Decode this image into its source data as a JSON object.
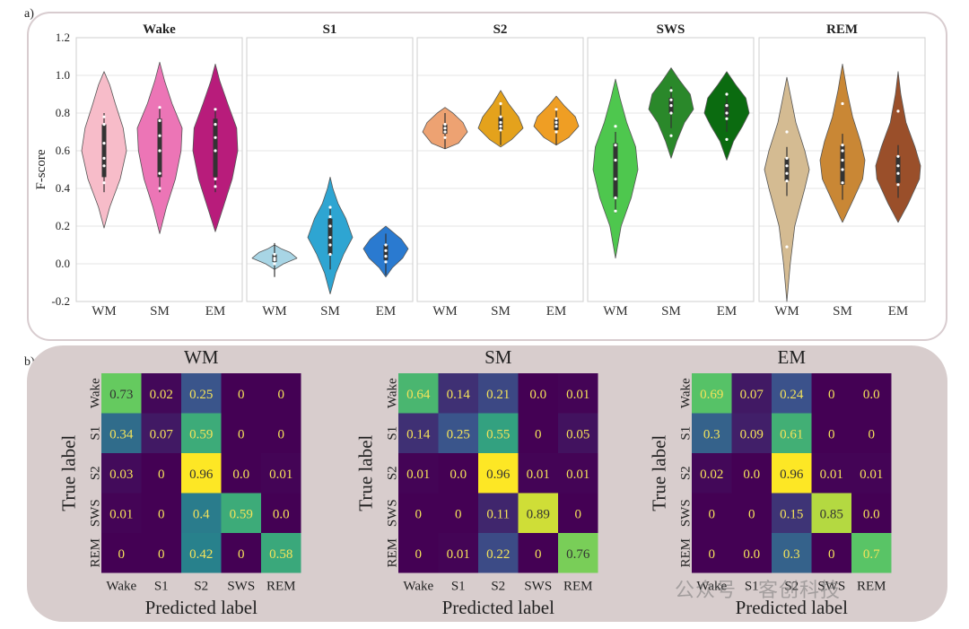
{
  "panel_labels": {
    "a": "a)",
    "b": "b)"
  },
  "watermark": "公众号 · 客创科技",
  "chart_data": [
    {
      "type": "violin",
      "ylabel": "F-score",
      "ylim": [
        -0.2,
        1.2
      ],
      "yticks": [
        -0.2,
        0.0,
        0.2,
        0.4,
        0.6,
        0.8,
        1.0,
        1.2
      ],
      "ytick_labels": [
        "-0.2",
        "0.0",
        "0.2",
        "0.4",
        "0.6",
        "0.8",
        "1.0",
        "1.2"
      ],
      "grid": true,
      "categories": [
        "WM",
        "SM",
        "EM"
      ],
      "panels": [
        {
          "title": "Wake",
          "colors": [
            "#f7bcc9",
            "#ec75b6",
            "#b81c7b"
          ],
          "violins": [
            {
              "min": 0.19,
              "max": 1.02,
              "median": 0.59,
              "q1": 0.46,
              "q3": 0.74,
              "shape": [
                [
                  0.19,
                  0
                ],
                [
                  0.3,
                  0.25
                ],
                [
                  0.45,
                  0.72
                ],
                [
                  0.6,
                  1
                ],
                [
                  0.72,
                  0.85
                ],
                [
                  0.85,
                  0.5
                ],
                [
                  0.95,
                  0.25
                ],
                [
                  1.02,
                  0
                ]
              ],
              "points": [
                0.43,
                0.52,
                0.56,
                0.64,
                0.74,
                0.78
              ]
            },
            {
              "min": 0.16,
              "max": 1.07,
              "median": 0.63,
              "q1": 0.46,
              "q3": 0.77,
              "shape": [
                [
                  0.16,
                  0
                ],
                [
                  0.3,
                  0.3
                ],
                [
                  0.45,
                  0.7
                ],
                [
                  0.6,
                  0.95
                ],
                [
                  0.72,
                  1
                ],
                [
                  0.85,
                  0.55
                ],
                [
                  0.97,
                  0.22
                ],
                [
                  1.07,
                  0
                ]
              ],
              "points": [
                0.4,
                0.48,
                0.6,
                0.68,
                0.76,
                0.83
              ]
            },
            {
              "min": 0.17,
              "max": 1.06,
              "median": 0.62,
              "q1": 0.46,
              "q3": 0.77,
              "shape": [
                [
                  0.17,
                  0
                ],
                [
                  0.3,
                  0.35
                ],
                [
                  0.45,
                  0.75
                ],
                [
                  0.6,
                  1
                ],
                [
                  0.72,
                  0.95
                ],
                [
                  0.85,
                  0.55
                ],
                [
                  0.97,
                  0.2
                ],
                [
                  1.06,
                  0
                ]
              ],
              "points": [
                0.41,
                0.45,
                0.6,
                0.67,
                0.74,
                0.82
              ]
            }
          ]
        },
        {
          "title": "S1",
          "colors": [
            "#a8d5e5",
            "#2ea5d2",
            "#2a7ad0"
          ],
          "violins": [
            {
              "min": -0.03,
              "max": 0.1,
              "median": 0.03,
              "q1": 0.01,
              "q3": 0.05,
              "shape": [
                [
                  -0.03,
                  0
                ],
                [
                  0.0,
                  0.4
                ],
                [
                  0.03,
                  1
                ],
                [
                  0.06,
                  0.7
                ],
                [
                  0.08,
                  0.3
                ],
                [
                  0.1,
                  0
                ]
              ],
              "points": [
                0.0,
                0.02,
                0.03,
                0.05
              ]
            },
            {
              "min": -0.16,
              "max": 0.46,
              "median": 0.14,
              "q1": 0.05,
              "q3": 0.24,
              "shape": [
                [
                  -0.16,
                  0
                ],
                [
                  -0.05,
                  0.25
                ],
                [
                  0.05,
                  0.6
                ],
                [
                  0.14,
                  1
                ],
                [
                  0.24,
                  0.7
                ],
                [
                  0.32,
                  0.35
                ],
                [
                  0.4,
                  0.12
                ],
                [
                  0.46,
                  0
                ]
              ],
              "points": [
                0.05,
                0.1,
                0.14,
                0.2,
                0.25,
                0.3
              ]
            },
            {
              "min": -0.07,
              "max": 0.2,
              "median": 0.06,
              "q1": 0.02,
              "q3": 0.1,
              "shape": [
                [
                  -0.07,
                  0
                ],
                [
                  -0.02,
                  0.3
                ],
                [
                  0.03,
                  0.75
                ],
                [
                  0.08,
                  1
                ],
                [
                  0.13,
                  0.7
                ],
                [
                  0.17,
                  0.3
                ],
                [
                  0.2,
                  0
                ]
              ],
              "points": [
                0.01,
                0.04,
                0.07,
                0.1
              ]
            }
          ]
        },
        {
          "title": "S2",
          "colors": [
            "#eda272",
            "#e4a21c",
            "#ef9e24"
          ],
          "violins": [
            {
              "min": 0.61,
              "max": 0.83,
              "median": 0.71,
              "q1": 0.69,
              "q3": 0.74,
              "shape": [
                [
                  0.61,
                  0
                ],
                [
                  0.64,
                  0.6
                ],
                [
                  0.7,
                  1
                ],
                [
                  0.75,
                  0.8
                ],
                [
                  0.8,
                  0.35
                ],
                [
                  0.83,
                  0
                ]
              ],
              "points": [
                0.67,
                0.7,
                0.72,
                0.74
              ]
            },
            {
              "min": 0.62,
              "max": 0.92,
              "median": 0.74,
              "q1": 0.71,
              "q3": 0.78,
              "shape": [
                [
                  0.62,
                  0
                ],
                [
                  0.66,
                  0.5
                ],
                [
                  0.72,
                  1
                ],
                [
                  0.78,
                  0.8
                ],
                [
                  0.85,
                  0.35
                ],
                [
                  0.92,
                  0
                ]
              ],
              "points": [
                0.71,
                0.73,
                0.75,
                0.78,
                0.85
              ]
            },
            {
              "min": 0.63,
              "max": 0.89,
              "median": 0.74,
              "q1": 0.71,
              "q3": 0.77,
              "shape": [
                [
                  0.63,
                  0
                ],
                [
                  0.67,
                  0.55
                ],
                [
                  0.73,
                  1
                ],
                [
                  0.78,
                  0.85
                ],
                [
                  0.84,
                  0.35
                ],
                [
                  0.89,
                  0
                ]
              ],
              "points": [
                0.7,
                0.73,
                0.75,
                0.77,
                0.82
              ]
            }
          ]
        },
        {
          "title": "SWS",
          "colors": [
            "#4ec74e",
            "#2a882a",
            "#0b6b10"
          ],
          "violins": [
            {
              "min": 0.03,
              "max": 0.98,
              "median": 0.46,
              "q1": 0.35,
              "q3": 0.64,
              "shape": [
                [
                  0.03,
                  0
                ],
                [
                  0.2,
                  0.25
                ],
                [
                  0.35,
                  0.7
                ],
                [
                  0.5,
                  1
                ],
                [
                  0.62,
                  0.9
                ],
                [
                  0.75,
                  0.5
                ],
                [
                  0.88,
                  0.2
                ],
                [
                  0.98,
                  0
                ]
              ],
              "points": [
                0.28,
                0.35,
                0.45,
                0.55,
                0.63,
                0.73
              ]
            },
            {
              "min": 0.56,
              "max": 1.04,
              "median": 0.84,
              "q1": 0.8,
              "q3": 0.88,
              "shape": [
                [
                  0.56,
                  0
                ],
                [
                  0.65,
                  0.25
                ],
                [
                  0.75,
                  0.6
                ],
                [
                  0.82,
                  1
                ],
                [
                  0.9,
                  0.85
                ],
                [
                  0.97,
                  0.4
                ],
                [
                  1.04,
                  0
                ]
              ],
              "points": [
                0.68,
                0.8,
                0.84,
                0.87,
                0.92
              ]
            },
            {
              "min": 0.55,
              "max": 1.02,
              "median": 0.81,
              "q1": 0.78,
              "q3": 0.85,
              "shape": [
                [
                  0.55,
                  0
                ],
                [
                  0.65,
                  0.3
                ],
                [
                  0.73,
                  0.7
                ],
                [
                  0.8,
                  1
                ],
                [
                  0.88,
                  0.85
                ],
                [
                  0.95,
                  0.4
                ],
                [
                  1.02,
                  0
                ]
              ],
              "points": [
                0.66,
                0.77,
                0.8,
                0.84,
                0.9
              ]
            }
          ]
        },
        {
          "title": "REM",
          "colors": [
            "#d4bb92",
            "#c98735",
            "#9a4f2a"
          ],
          "violins": [
            {
              "min": -0.2,
              "max": 0.99,
              "median": 0.5,
              "q1": 0.44,
              "q3": 0.56,
              "shape": [
                [
                  -0.2,
                  0
                ],
                [
                  0.0,
                  0.15
                ],
                [
                  0.2,
                  0.35
                ],
                [
                  0.4,
                  0.8
                ],
                [
                  0.5,
                  1
                ],
                [
                  0.6,
                  0.8
                ],
                [
                  0.75,
                  0.4
                ],
                [
                  0.9,
                  0.15
                ],
                [
                  0.99,
                  0
                ]
              ],
              "points": [
                0.09,
                0.44,
                0.48,
                0.52,
                0.56,
                0.7
              ]
            },
            {
              "min": 0.22,
              "max": 1.06,
              "median": 0.55,
              "q1": 0.42,
              "q3": 0.63,
              "shape": [
                [
                  0.22,
                  0
                ],
                [
                  0.32,
                  0.4
                ],
                [
                  0.45,
                  0.9
                ],
                [
                  0.55,
                  1
                ],
                [
                  0.65,
                  0.8
                ],
                [
                  0.78,
                  0.45
                ],
                [
                  0.92,
                  0.2
                ],
                [
                  1.06,
                  0
                ]
              ],
              "points": [
                0.43,
                0.5,
                0.55,
                0.6,
                0.63,
                0.85
              ]
            },
            {
              "min": 0.22,
              "max": 1.02,
              "median": 0.5,
              "q1": 0.43,
              "q3": 0.57,
              "shape": [
                [
                  0.22,
                  0
                ],
                [
                  0.32,
                  0.45
                ],
                [
                  0.45,
                  0.95
                ],
                [
                  0.52,
                  1
                ],
                [
                  0.62,
                  0.75
                ],
                [
                  0.75,
                  0.35
                ],
                [
                  0.9,
                  0.12
                ],
                [
                  1.02,
                  0
                ]
              ],
              "points": [
                0.42,
                0.48,
                0.52,
                0.57,
                0.81
              ]
            }
          ]
        }
      ]
    },
    {
      "type": "heatmap",
      "colormap": "viridis",
      "labels": [
        "Wake",
        "S1",
        "S2",
        "SWS",
        "REM"
      ],
      "xlabel": "Predicted label",
      "ylabel": "True label",
      "matrices": [
        {
          "title": "WM",
          "values": [
            [
              "0.73",
              "0.02",
              "0.25",
              "0",
              "0"
            ],
            [
              "0.34",
              "0.07",
              "0.59",
              "0",
              "0"
            ],
            [
              "0.03",
              "0",
              "0.96",
              "0.0",
              "0.01"
            ],
            [
              "0.01",
              "0",
              "0.4",
              "0.59",
              "0.0"
            ],
            [
              "0",
              "0",
              "0.42",
              "0",
              "0.58"
            ]
          ]
        },
        {
          "title": "SM",
          "values": [
            [
              "0.64",
              "0.14",
              "0.21",
              "0.0",
              "0.01"
            ],
            [
              "0.14",
              "0.25",
              "0.55",
              "0",
              "0.05"
            ],
            [
              "0.01",
              "0.0",
              "0.96",
              "0.01",
              "0.01"
            ],
            [
              "0",
              "0",
              "0.11",
              "0.89",
              "0"
            ],
            [
              "0",
              "0.01",
              "0.22",
              "0",
              "0.76"
            ]
          ]
        },
        {
          "title": "EM",
          "values": [
            [
              "0.69",
              "0.07",
              "0.24",
              "0",
              "0.0"
            ],
            [
              "0.3",
              "0.09",
              "0.61",
              "0",
              "0"
            ],
            [
              "0.02",
              "0.0",
              "0.96",
              "0.01",
              "0.01"
            ],
            [
              "0",
              "0",
              "0.15",
              "0.85",
              "0.0"
            ],
            [
              "0",
              "0.0",
              "0.3",
              "0",
              "0.7"
            ]
          ]
        }
      ]
    }
  ]
}
